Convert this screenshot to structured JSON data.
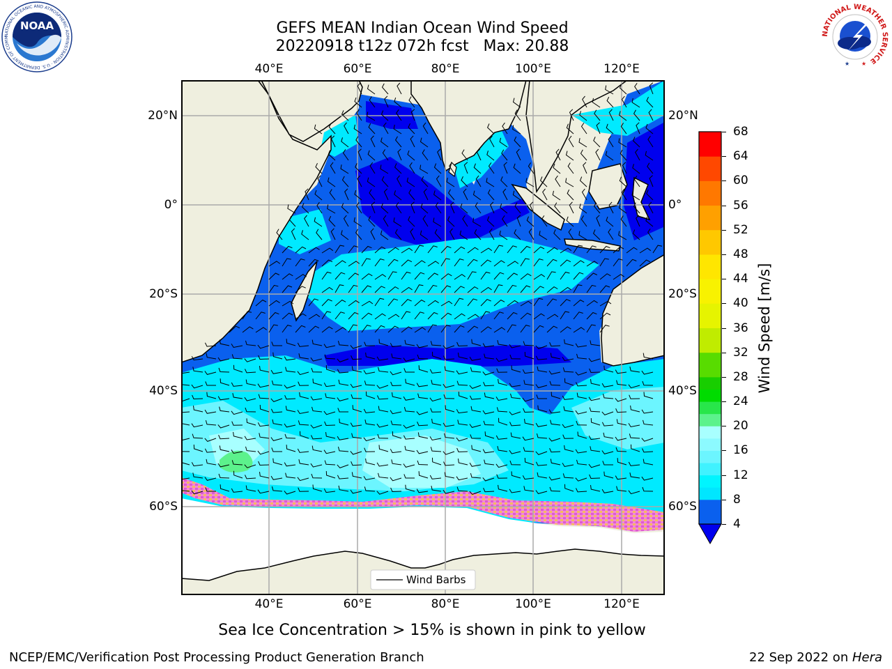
{
  "header": {
    "title_line1": "GEFS MEAN Indian Ocean Wind Speed",
    "title_line2": "20220918 t12z 072h fcst   Max: 20.88"
  },
  "map": {
    "projection": "PlateCarree",
    "lon_range": [
      20,
      130
    ],
    "lat_range": [
      -75,
      27
    ],
    "lon_ticks": [
      "40°E",
      "60°E",
      "80°E",
      "100°E",
      "120°E"
    ],
    "lat_ticks": [
      "20°N",
      "0°",
      "20°S",
      "40°S",
      "60°S"
    ],
    "land_color": "#efefdf",
    "legend": {
      "label": "Wind Barbs"
    }
  },
  "colorbar": {
    "label": "Wind Speed [m/s]",
    "ticks": [
      "68",
      "64",
      "60",
      "56",
      "52",
      "48",
      "44",
      "40",
      "36",
      "32",
      "28",
      "24",
      "20",
      "16",
      "12",
      "8",
      "4"
    ],
    "levels": [
      4,
      8,
      10,
      12,
      14,
      16,
      18,
      20,
      22,
      24,
      26,
      28,
      32,
      36,
      40,
      44,
      48,
      52,
      56,
      60,
      64,
      68
    ],
    "colors": [
      "#0a60ee",
      "#00e6ff",
      "#00f5ff",
      "#40f2ff",
      "#6cf5ff",
      "#8cfaff",
      "#a8ffff",
      "#5cf28c",
      "#28e64a",
      "#00dc00",
      "#18ce00",
      "#58dc00",
      "#c0ec00",
      "#e6f400",
      "#f8f200",
      "#ffe600",
      "#ffc800",
      "#ffa000",
      "#ff7800",
      "#ff4800",
      "#ff0000"
    ],
    "under_color": "#0000ee"
  },
  "caption": "Sea Ice Concentration > 15% is shown in pink to yellow",
  "footer": {
    "left": "NCEP/EMC/Verification Post Processing Product Generation Branch",
    "right_prefix": "22 Sep 2022 on ",
    "right_machine": "Hera"
  },
  "logos": {
    "noaa_text": "NOAA",
    "noaa_ring_text": "NATIONAL OCEANIC AND ATMOSPHERIC ADMINISTRATION · U.S. DEPARTMENT OF COMMERCE",
    "nws_ring_text": "NATIONAL WEATHER SERVICE"
  }
}
